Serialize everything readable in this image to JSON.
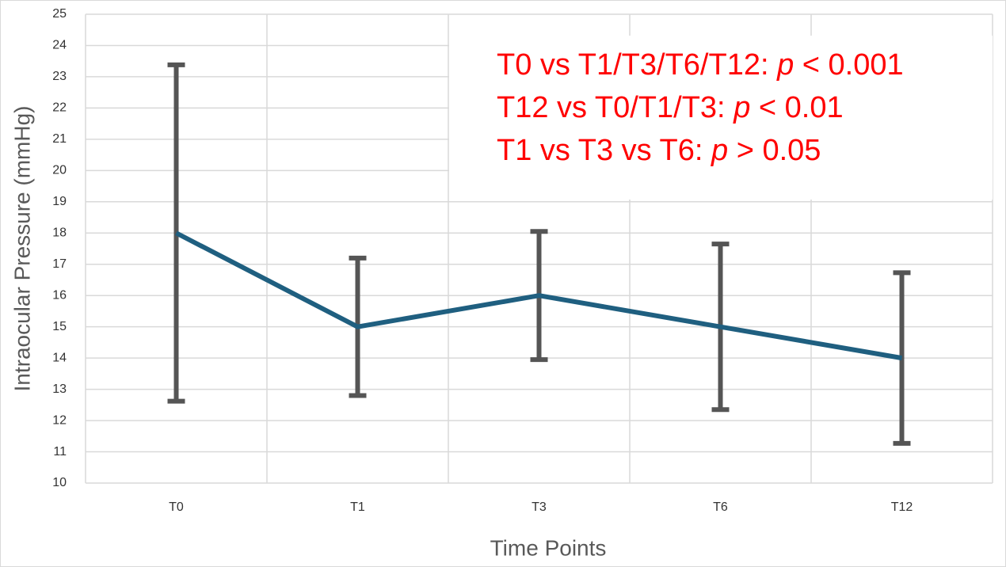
{
  "chart_data": {
    "type": "line",
    "x_label": "Time Points",
    "y_label": "Intraocular Pressure (mmHg)",
    "categories": [
      "T0",
      "T1",
      "T3",
      "T6",
      "T12"
    ],
    "values": [
      18,
      15,
      16,
      15,
      14
    ],
    "errors": [
      5.38,
      2.2,
      2.05,
      2.65,
      2.73
    ],
    "color": "#1f5f80",
    "error_color": "#555555",
    "ylim": [
      10,
      25
    ],
    "yticks": [
      10,
      11,
      12,
      13,
      14,
      15,
      16,
      17,
      18,
      19,
      20,
      21,
      22,
      23,
      24,
      25
    ],
    "grid": true,
    "annotations": [
      [
        "T0 vs T1/T3/T6/T12: ",
        "p",
        " < 0.001"
      ],
      [
        "T12 vs T0/T1/T3: ",
        "p",
        " < 0.01"
      ],
      [
        "T1 vs T3 vs T6: ",
        "p",
        " > 0.05"
      ]
    ],
    "annotation_color": "#ff0000"
  }
}
